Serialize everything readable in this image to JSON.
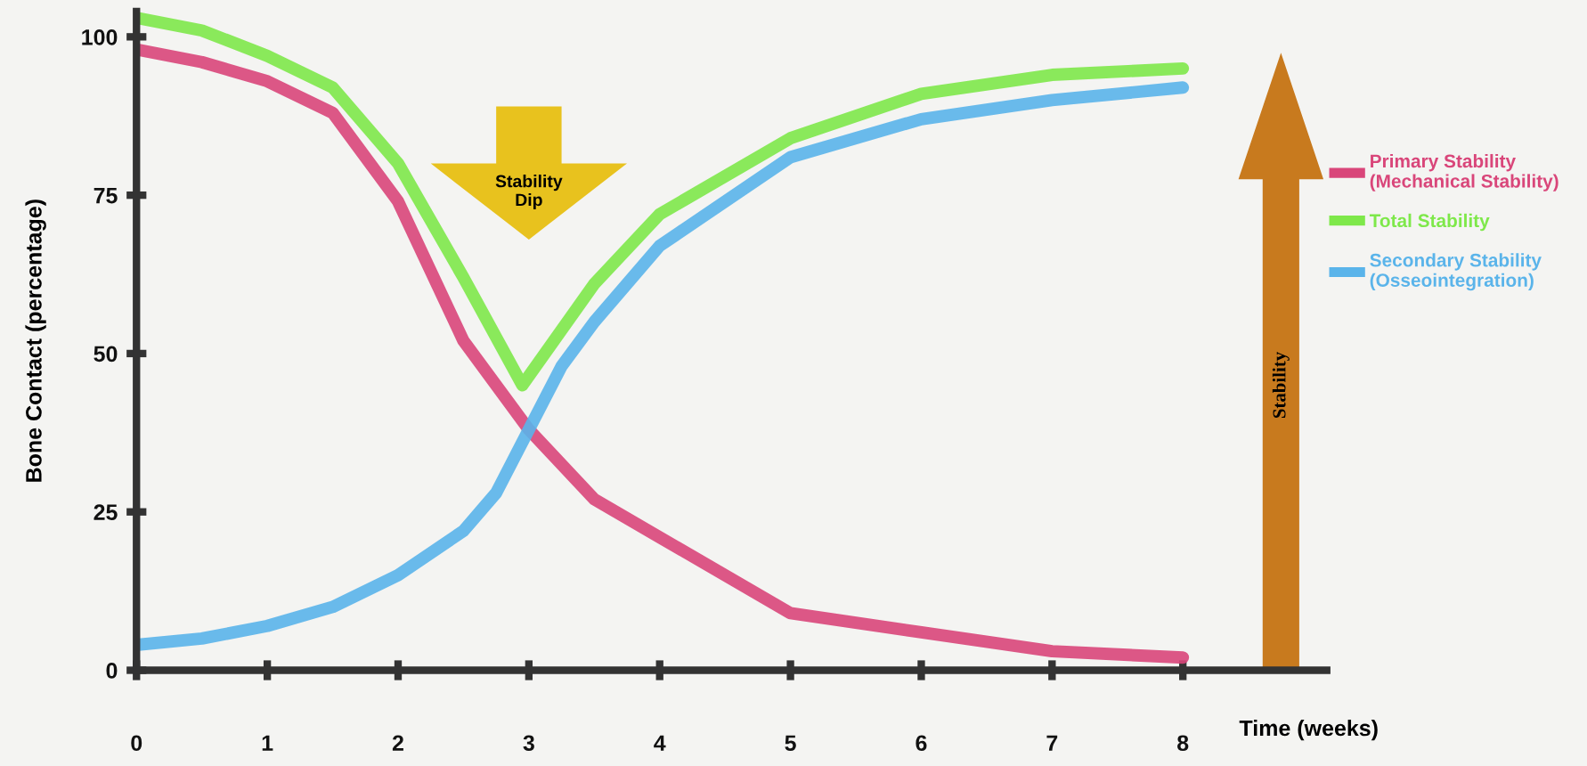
{
  "chart_data": {
    "type": "line",
    "xlabel": "Time (weeks)",
    "ylabel": "Bone Contact (percentage)",
    "xlim": [
      0,
      9.1
    ],
    "ylim": [
      0,
      104
    ],
    "xticks": [
      0,
      1,
      2,
      3,
      4,
      5,
      6,
      7,
      8
    ],
    "yticks": [
      0,
      25,
      50,
      75,
      100
    ],
    "grid": false,
    "legend": "right",
    "marker": "none",
    "line_style": "solid",
    "annotations": [
      "Stability\nDip",
      "Stability"
    ],
    "series": [
      {
        "name": "Primary Stability\n(Mechanical Stability)",
        "color": "#d9467a",
        "x": [
          0,
          0.5,
          1,
          1.5,
          2,
          2.5,
          3,
          3.5,
          4,
          5,
          6,
          7,
          8
        ],
        "values": [
          98,
          96,
          93,
          88,
          74,
          52,
          38,
          27,
          21,
          9,
          6,
          3,
          2
        ]
      },
      {
        "name": "Total Stability",
        "color": "#7ee84a",
        "x": [
          0,
          0.5,
          1,
          1.5,
          2,
          2.5,
          2.95,
          3.5,
          4,
          5,
          6,
          7,
          8
        ],
        "values": [
          103,
          101,
          97,
          92,
          80,
          62,
          45,
          61,
          72,
          84,
          91,
          94,
          95
        ]
      },
      {
        "name": "Secondary Stability\n(Osseointegration)",
        "color": "#5ab4ea",
        "x": [
          0,
          0.5,
          1,
          1.5,
          2,
          2.5,
          2.75,
          3,
          3.25,
          3.5,
          4,
          5,
          6,
          7,
          8
        ],
        "values": [
          4,
          5,
          7,
          10,
          15,
          22,
          28,
          38,
          48,
          55,
          67,
          81,
          87,
          90,
          92
        ]
      }
    ]
  }
}
